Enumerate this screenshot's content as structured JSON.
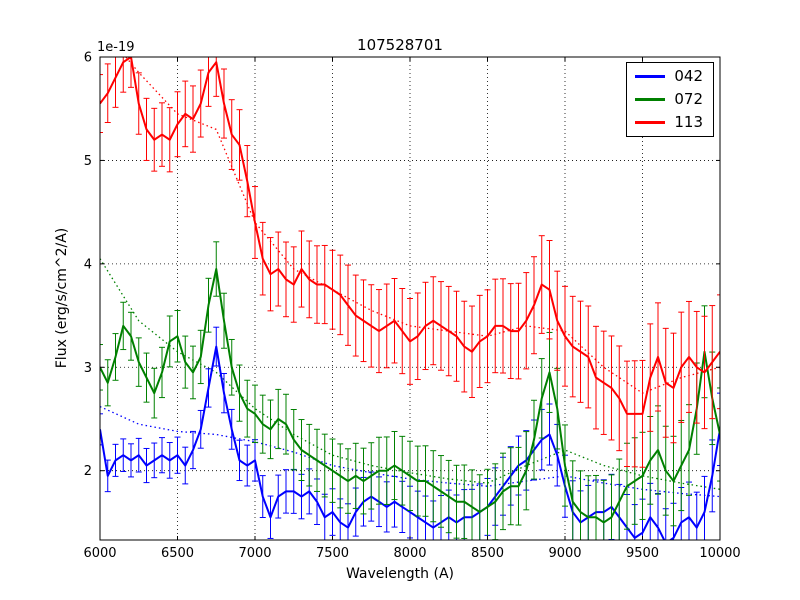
{
  "chart_data": {
    "type": "line",
    "title": "107528701",
    "xlabel": "Wavelength (A)",
    "ylabel": "Flux (erg/s/cm^2/A)",
    "y_offset_label": "1e-19",
    "xlim": [
      6000,
      10000
    ],
    "ylim": [
      1.33,
      6.0
    ],
    "xticks": [
      6000,
      6500,
      7000,
      7500,
      8000,
      8500,
      9000,
      9500,
      10000
    ],
    "yticks": [
      2,
      3,
      4,
      5,
      6
    ],
    "grid": true,
    "grid_style": "dotted",
    "legend_position": "upper right",
    "x_start": 6000,
    "x_step": 50,
    "series": [
      {
        "name": "042",
        "color": "#0000ff",
        "err_range": [
          0.15,
          0.35
        ],
        "values": [
          2.4,
          1.95,
          2.1,
          2.15,
          2.1,
          2.15,
          2.05,
          2.1,
          2.15,
          2.1,
          2.15,
          2.05,
          2.2,
          2.4,
          2.8,
          3.2,
          2.75,
          2.4,
          2.1,
          2.05,
          2.1,
          1.75,
          1.55,
          1.75,
          1.8,
          1.8,
          1.75,
          1.8,
          1.7,
          1.55,
          1.6,
          1.5,
          1.45,
          1.6,
          1.7,
          1.75,
          1.7,
          1.65,
          1.7,
          1.65,
          1.6,
          1.55,
          1.5,
          1.45,
          1.5,
          1.55,
          1.5,
          1.55,
          1.55,
          1.6,
          1.65,
          1.75,
          1.85,
          1.95,
          2.05,
          2.1,
          2.2,
          2.3,
          2.35,
          2.15,
          1.85,
          1.6,
          1.5,
          1.55,
          1.6,
          1.6,
          1.65,
          1.55,
          1.45,
          1.35,
          1.4,
          1.55,
          1.45,
          1.3,
          1.35,
          1.5,
          1.55,
          1.45,
          1.6,
          1.95,
          2.4
        ]
      },
      {
        "name": "072",
        "color": "#008000",
        "err_range": [
          0.22,
          0.45
        ],
        "values": [
          3.0,
          2.85,
          3.1,
          3.4,
          3.3,
          3.05,
          2.9,
          2.75,
          2.95,
          3.25,
          3.3,
          3.05,
          2.95,
          3.1,
          3.6,
          3.95,
          3.45,
          3.0,
          2.75,
          2.6,
          2.55,
          2.45,
          2.4,
          2.5,
          2.45,
          2.3,
          2.2,
          2.15,
          2.1,
          2.05,
          2.0,
          1.95,
          1.9,
          1.95,
          1.9,
          1.95,
          2.0,
          2.0,
          2.05,
          2.0,
          1.95,
          1.9,
          1.9,
          1.85,
          1.8,
          1.75,
          1.7,
          1.7,
          1.65,
          1.6,
          1.65,
          1.7,
          1.8,
          1.85,
          1.85,
          2.0,
          2.3,
          2.7,
          2.95,
          2.6,
          2.05,
          1.7,
          1.6,
          1.55,
          1.55,
          1.5,
          1.55,
          1.7,
          1.85,
          1.9,
          1.95,
          2.1,
          2.2,
          2.0,
          1.9,
          2.05,
          2.2,
          2.6,
          3.15,
          2.7,
          2.35
        ]
      },
      {
        "name": "113",
        "color": "#ff0000",
        "err_range": [
          0.28,
          0.55
        ],
        "values": [
          5.55,
          5.65,
          5.8,
          5.95,
          6.0,
          5.55,
          5.3,
          5.2,
          5.25,
          5.2,
          5.35,
          5.45,
          5.4,
          5.55,
          5.85,
          5.95,
          5.55,
          5.25,
          5.15,
          4.8,
          4.4,
          4.05,
          3.9,
          3.95,
          3.85,
          3.8,
          3.95,
          3.85,
          3.8,
          3.8,
          3.75,
          3.7,
          3.6,
          3.5,
          3.45,
          3.4,
          3.35,
          3.4,
          3.45,
          3.35,
          3.25,
          3.3,
          3.4,
          3.45,
          3.4,
          3.35,
          3.3,
          3.2,
          3.15,
          3.25,
          3.3,
          3.4,
          3.4,
          3.35,
          3.35,
          3.45,
          3.6,
          3.8,
          3.75,
          3.45,
          3.3,
          3.2,
          3.15,
          3.1,
          2.9,
          2.85,
          2.8,
          2.7,
          2.55,
          2.55,
          2.55,
          2.9,
          3.1,
          2.85,
          2.8,
          3.0,
          3.1,
          3.0,
          2.95,
          3.05,
          3.15
        ]
      }
    ],
    "model_series": [
      {
        "name": "042-model",
        "color": "#0000ff",
        "x_start": 6000,
        "x_step": 250,
        "values": [
          2.62,
          2.45,
          2.38,
          2.35,
          2.28,
          2.18,
          2.05,
          1.98,
          1.92,
          1.88,
          1.85,
          1.9,
          1.95,
          1.88,
          1.82,
          1.78,
          1.75
        ]
      },
      {
        "name": "072-model",
        "color": "#008000",
        "x_start": 6000,
        "x_step": 250,
        "values": [
          4.05,
          3.45,
          3.15,
          2.95,
          2.6,
          2.35,
          2.15,
          2.05,
          1.98,
          1.92,
          1.88,
          2.05,
          2.2,
          2.05,
          1.95,
          1.88,
          1.82
        ]
      },
      {
        "name": "113-model",
        "color": "#ff0000",
        "x_start": 6000,
        "x_step": 250,
        "values": [
          6.3,
          5.85,
          5.45,
          5.3,
          4.4,
          3.95,
          3.75,
          3.55,
          3.4,
          3.35,
          3.3,
          3.4,
          3.35,
          3.0,
          2.75,
          2.9,
          3.0
        ]
      }
    ]
  }
}
